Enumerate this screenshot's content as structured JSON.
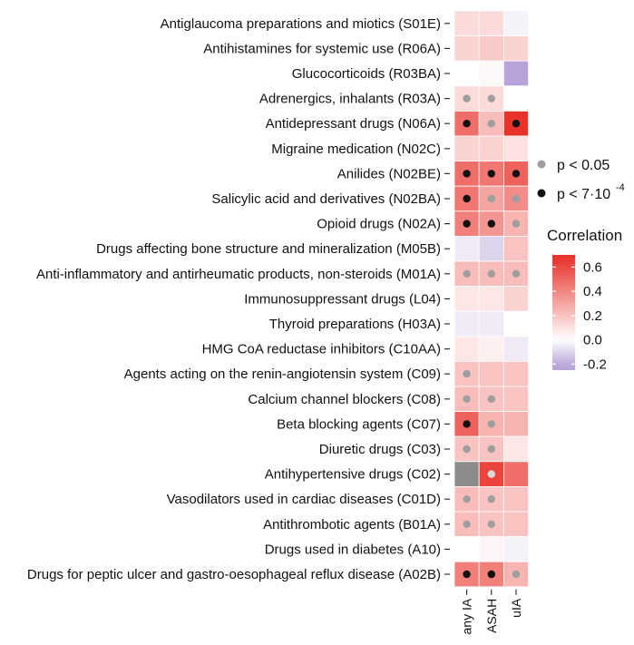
{
  "chart_data": {
    "type": "heatmap",
    "rows": [
      "Antiglaucoma preparations and miotics (S01E)",
      "Antihistamines for systemic use (R06A)",
      "Glucocorticoids (R03BA)",
      "Adrenergics, inhalants (R03A)",
      "Antidepressant drugs (N06A)",
      "Migraine medication (N02C)",
      "Anilides (N02BE)",
      "Salicylic acid and derivatives (N02BA)",
      "Opioid drugs (N02A)",
      "Drugs affecting bone structure and mineralization (M05B)",
      "Anti-inflammatory and antirheumatic products, non-steroids (M01A)",
      "Immunosuppressant drugs (L04)",
      "Thyroid preparations (H03A)",
      "HMG CoA reductase inhibitors (C10AA)",
      "Agents acting on the renin-angiotensin system (C09)",
      "Calcium channel blockers (C08)",
      "Beta blocking agents (C07)",
      "Diuretic drugs (C03)",
      "Antihypertensive drugs (C02)",
      "Vasodilators used in cardiac diseases (C01D)",
      "Antithrombotic agents (B01A)",
      "Drugs used in diabetes (A10)",
      "Drugs for peptic ulcer and gastro-oesophageal reflux disease (A02B)"
    ],
    "columns": [
      "any IA",
      "ASAH",
      "uIA"
    ],
    "values": [
      [
        0.12,
        0.12,
        -0.03
      ],
      [
        0.15,
        0.18,
        0.15
      ],
      [
        0.0,
        0.02,
        -0.22
      ],
      [
        0.12,
        0.12,
        0.0
      ],
      [
        0.48,
        0.22,
        0.68
      ],
      [
        0.15,
        0.15,
        0.1
      ],
      [
        0.48,
        0.45,
        0.52
      ],
      [
        0.45,
        0.3,
        0.38
      ],
      [
        0.42,
        0.35,
        0.25
      ],
      [
        -0.05,
        -0.1,
        0.2
      ],
      [
        0.22,
        0.22,
        0.22
      ],
      [
        0.08,
        0.08,
        0.15
      ],
      [
        -0.05,
        -0.05,
        0.0
      ],
      [
        0.08,
        0.05,
        -0.05
      ],
      [
        0.2,
        0.2,
        0.2
      ],
      [
        0.22,
        0.2,
        0.2
      ],
      [
        0.52,
        0.25,
        0.25
      ],
      [
        0.2,
        0.2,
        0.08
      ],
      [
        null,
        0.62,
        0.48
      ],
      [
        0.22,
        0.2,
        0.2
      ],
      [
        0.22,
        0.2,
        0.2
      ],
      [
        0.0,
        0.03,
        -0.03
      ],
      [
        0.42,
        0.42,
        0.25
      ]
    ],
    "significance": [
      [
        "",
        "",
        ""
      ],
      [
        "",
        "",
        ""
      ],
      [
        "",
        "",
        ""
      ],
      [
        "p05",
        "p05",
        ""
      ],
      [
        "p7",
        "p05",
        "p7"
      ],
      [
        "",
        "",
        ""
      ],
      [
        "p7",
        "p7",
        "p7"
      ],
      [
        "p7",
        "p05",
        "p05"
      ],
      [
        "p7",
        "p7",
        "p05"
      ],
      [
        "",
        "",
        ""
      ],
      [
        "p05",
        "p05",
        "p05"
      ],
      [
        "",
        "",
        ""
      ],
      [
        "",
        "",
        ""
      ],
      [
        "",
        "",
        ""
      ],
      [
        "p05",
        "",
        ""
      ],
      [
        "p05",
        "p05",
        ""
      ],
      [
        "p7",
        "p05",
        ""
      ],
      [
        "p05",
        "p05",
        ""
      ],
      [
        "",
        "p05",
        ""
      ],
      [
        "p05",
        "p05",
        ""
      ],
      [
        "p05",
        "p05",
        ""
      ],
      [
        "",
        "",
        ""
      ],
      [
        "p7",
        "p7",
        "p05"
      ]
    ],
    "legend": {
      "p05_label": "p < 0.05",
      "p7_label_main": "p < 7·10",
      "p7_label_exp": "-4",
      "p05_color": "#9e9e9e",
      "p7_color": "#111111"
    },
    "colorbar": {
      "title": "Correlation",
      "range": [
        -0.25,
        0.7
      ],
      "ticks": [
        0.6,
        0.4,
        0.2,
        0.0,
        -0.2
      ],
      "tick_labels": [
        "0.6",
        "0.4",
        "0.2",
        "0.0",
        "-0.2"
      ],
      "low_color": "#b7a3d8",
      "mid_color": "#ffffff",
      "high_color": "#e8322a",
      "na_color": "#8c8c8c"
    }
  }
}
